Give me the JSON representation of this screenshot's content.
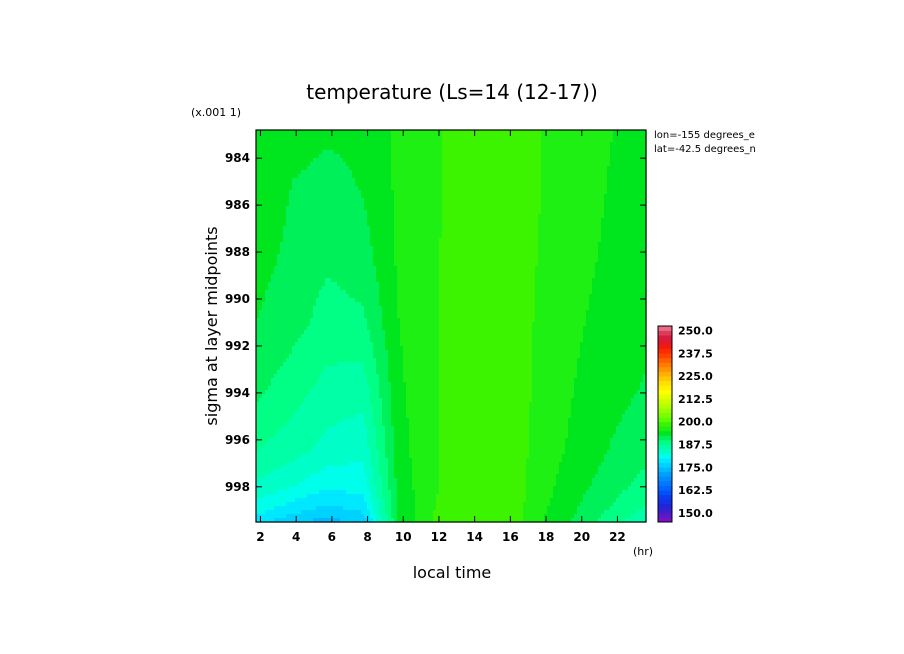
{
  "chart_data": {
    "type": "heatmap",
    "title": "temperature (Ls=14 (12-17))",
    "xlabel": "local time",
    "ylabel": "sigma at layer midpoints",
    "x_unit": "(hr)",
    "y_scale_note": "(x.001 1)",
    "x_ticks": [
      "2",
      "4",
      "6",
      "8",
      "10",
      "12",
      "14",
      "16",
      "18",
      "20",
      "22"
    ],
    "y_ticks": [
      "984",
      "986",
      "988",
      "990",
      "992",
      "994",
      "996",
      "998"
    ],
    "xlim": [
      1.75,
      23.6
    ],
    "ylim": [
      982.8,
      999.5
    ],
    "annotations": [
      "lon=-155 degrees_e",
      "lat=-42.5 degrees_n"
    ],
    "colorbar": {
      "labels": [
        "250.0",
        "237.5",
        "225.0",
        "212.5",
        "200.0",
        "187.5",
        "175.0",
        "162.5",
        "150.0"
      ],
      "min": 145,
      "max": 252.5,
      "step": 2.5
    },
    "x": [
      1.75,
      3.75,
      5.75,
      7.75,
      9.75,
      11.75,
      13.75,
      15.75,
      17.75,
      19.75,
      21.75,
      23.6
    ],
    "y": [
      982.8,
      985,
      988,
      991,
      994,
      996.5,
      998,
      999,
      999.5
    ],
    "values": [
      [
        194.5,
        194.0,
        193.0,
        193.2,
        195.5,
        197.0,
        199.0,
        199.0,
        197.5,
        196.0,
        195.0,
        194.5
      ],
      [
        194.0,
        192.5,
        191.5,
        192.8,
        195.5,
        197.0,
        199.0,
        199.0,
        197.5,
        196.0,
        194.8,
        194.2
      ],
      [
        193.5,
        192.0,
        190.5,
        191.5,
        195.5,
        197.2,
        199.2,
        199.0,
        197.3,
        195.7,
        194.5,
        193.8
      ],
      [
        192.5,
        191.0,
        189.0,
        189.5,
        195.0,
        197.2,
        199.2,
        199.2,
        197.0,
        195.3,
        194.0,
        193.2
      ],
      [
        190.5,
        188.5,
        186.5,
        186.0,
        194.5,
        197.2,
        199.3,
        199.2,
        196.8,
        194.8,
        193.3,
        192.2
      ],
      [
        187.5,
        186.0,
        184.0,
        183.0,
        194.0,
        197.2,
        199.4,
        199.3,
        196.4,
        194.2,
        192.2,
        190.8
      ],
      [
        184.5,
        182.5,
        180.5,
        181.0,
        193.5,
        197.2,
        199.5,
        199.4,
        196.0,
        193.3,
        191.0,
        189.0
      ],
      [
        181.0,
        178.5,
        176.5,
        178.0,
        193.0,
        197.5,
        199.5,
        199.5,
        195.5,
        192.5,
        189.5,
        187.0
      ],
      [
        178.5,
        175.5,
        174.0,
        175.5,
        193.0,
        197.5,
        199.5,
        199.5,
        195.0,
        192.0,
        188.5,
        185.5
      ]
    ]
  }
}
